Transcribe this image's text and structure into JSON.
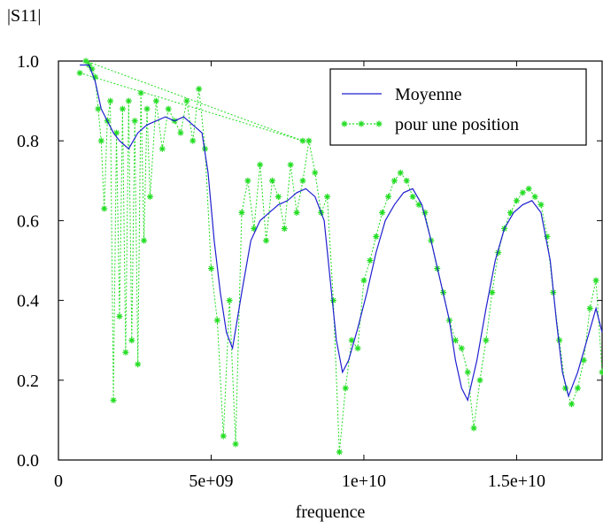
{
  "chart_data": {
    "type": "line",
    "title": "",
    "ylabel": "|S11|",
    "xlabel": "frequence",
    "xlim": [
      0,
      17800000000
    ],
    "ylim": [
      0.0,
      1.0
    ],
    "x_ticks": [
      0,
      5000000000,
      10000000000,
      15000000000
    ],
    "x_tick_labels": [
      "0",
      "5e+09",
      "1e+10",
      "1.5e+10"
    ],
    "y_ticks": [
      0.0,
      0.2,
      0.4,
      0.6,
      0.8,
      1.0
    ],
    "y_tick_labels": [
      "0.0",
      "0.2",
      "0.4",
      "0.6",
      "0.8",
      "1.0"
    ],
    "grid": false,
    "legend": "top-right",
    "series": [
      {
        "name": "Moyenne",
        "color": "#1f1fcf",
        "marker": "none",
        "x": [
          700000000.0,
          1000000000.0,
          1200000000.0,
          1400000000.0,
          1600000000.0,
          1800000000.0,
          2000000000.0,
          2300000000.0,
          2600000000.0,
          2900000000.0,
          3200000000.0,
          3500000000.0,
          3800000000.0,
          4100000000.0,
          4400000000.0,
          4700000000.0,
          4900000000.0,
          5100000000.0,
          5300000000.0,
          5500000000.0,
          5700000000.0,
          6000000000.0,
          6300000000.0,
          6600000000.0,
          6900000000.0,
          7200000000.0,
          7500000000.0,
          7800000000.0,
          8100000000.0,
          8400000000.0,
          8700000000.0,
          8900000000.0,
          9100000000.0,
          9300000000.0,
          9500000000.0,
          9800000000.0,
          10100000000.0,
          10400000000.0,
          10700000000.0,
          11000000000.0,
          11300000000.0,
          11600000000.0,
          11900000000.0,
          12200000000.0,
          12500000000.0,
          12800000000.0,
          13000000000.0,
          13200000000.0,
          13400000000.0,
          13700000000.0,
          14000000000.0,
          14300000000.0,
          14600000000.0,
          14900000000.0,
          15200000000.0,
          15500000000.0,
          15800000000.0,
          16100000000.0,
          16300000000.0,
          16500000000.0,
          16700000000.0,
          17000000000.0,
          17300000000.0,
          17600000000.0,
          17800000000.0
        ],
        "y": [
          0.99,
          0.99,
          0.95,
          0.88,
          0.85,
          0.82,
          0.8,
          0.78,
          0.82,
          0.84,
          0.85,
          0.86,
          0.85,
          0.86,
          0.84,
          0.82,
          0.72,
          0.55,
          0.42,
          0.32,
          0.28,
          0.42,
          0.55,
          0.6,
          0.62,
          0.64,
          0.65,
          0.67,
          0.68,
          0.66,
          0.6,
          0.45,
          0.3,
          0.22,
          0.25,
          0.33,
          0.42,
          0.52,
          0.6,
          0.64,
          0.67,
          0.68,
          0.64,
          0.55,
          0.45,
          0.35,
          0.25,
          0.18,
          0.15,
          0.25,
          0.38,
          0.5,
          0.58,
          0.62,
          0.64,
          0.65,
          0.62,
          0.5,
          0.35,
          0.22,
          0.16,
          0.22,
          0.3,
          0.38,
          0.32
        ]
      },
      {
        "name": "pour une position",
        "color": "#22dd22",
        "marker": "star",
        "x": [
          700000000.0,
          8000000000.0,
          900000000.0,
          1000000000.0,
          1100000000.0,
          1200000000.0,
          1300000000.0,
          1400000000.0,
          1500000000.0,
          1600000000.0,
          1700000000.0,
          1800000000.0,
          1900000000.0,
          2000000000.0,
          2100000000.0,
          2200000000.0,
          2300000000.0,
          2400000000.0,
          2500000000.0,
          2600000000.0,
          2700000000.0,
          2800000000.0,
          2900000000.0,
          3000000000.0,
          3200000000.0,
          3400000000.0,
          3600000000.0,
          3800000000.0,
          4000000000.0,
          4200000000.0,
          4400000000.0,
          4600000000.0,
          4800000000.0,
          5000000000.0,
          5200000000.0,
          5400000000.0,
          5600000000.0,
          5800000000.0,
          6000000000.0,
          6200000000.0,
          6400000000.0,
          6600000000.0,
          6800000000.0,
          7000000000.0,
          7200000000.0,
          7400000000.0,
          7600000000.0,
          7800000000.0,
          8000000000.0,
          8200000000.0,
          8400000000.0,
          8600000000.0,
          8800000000.0,
          9000000000.0,
          9200000000.0,
          9400000000.0,
          9600000000.0,
          9800000000.0,
          10000000000.0,
          10200000000.0,
          10400000000.0,
          10600000000.0,
          10800000000.0,
          11000000000.0,
          11200000000.0,
          11400000000.0,
          11600000000.0,
          11800000000.0,
          12000000000.0,
          12200000000.0,
          12400000000.0,
          12600000000.0,
          12800000000.0,
          13000000000.0,
          13200000000.0,
          13400000000.0,
          13600000000.0,
          13800000000.0,
          14000000000.0,
          14200000000.0,
          14400000000.0,
          14600000000.0,
          14800000000.0,
          15000000000.0,
          15200000000.0,
          15400000000.0,
          15600000000.0,
          15800000000.0,
          16000000000.0,
          16200000000.0,
          16400000000.0,
          16600000000.0,
          16800000000.0,
          17000000000.0,
          17200000000.0,
          17400000000.0,
          17600000000.0,
          17800000000.0
        ],
        "y": [
          0.97,
          0.8,
          1.0,
          0.99,
          0.98,
          0.96,
          0.88,
          0.8,
          0.63,
          0.85,
          0.9,
          0.15,
          0.82,
          0.36,
          0.88,
          0.27,
          0.9,
          0.3,
          0.85,
          0.24,
          0.92,
          0.55,
          0.88,
          0.66,
          0.9,
          0.78,
          0.88,
          0.85,
          0.82,
          0.9,
          0.8,
          0.93,
          0.78,
          0.48,
          0.35,
          0.06,
          0.4,
          0.04,
          0.62,
          0.7,
          0.58,
          0.74,
          0.55,
          0.7,
          0.66,
          0.58,
          0.74,
          0.62,
          0.7,
          0.8,
          0.72,
          0.62,
          0.66,
          0.4,
          0.02,
          0.18,
          0.3,
          0.28,
          0.45,
          0.5,
          0.56,
          0.62,
          0.66,
          0.7,
          0.72,
          0.7,
          0.66,
          0.64,
          0.62,
          0.55,
          0.48,
          0.42,
          0.35,
          0.3,
          0.28,
          0.22,
          0.08,
          0.2,
          0.3,
          0.42,
          0.52,
          0.58,
          0.62,
          0.65,
          0.67,
          0.68,
          0.66,
          0.64,
          0.56,
          0.42,
          0.3,
          0.18,
          0.14,
          0.18,
          0.25,
          0.38,
          0.45,
          0.22
        ]
      }
    ]
  }
}
